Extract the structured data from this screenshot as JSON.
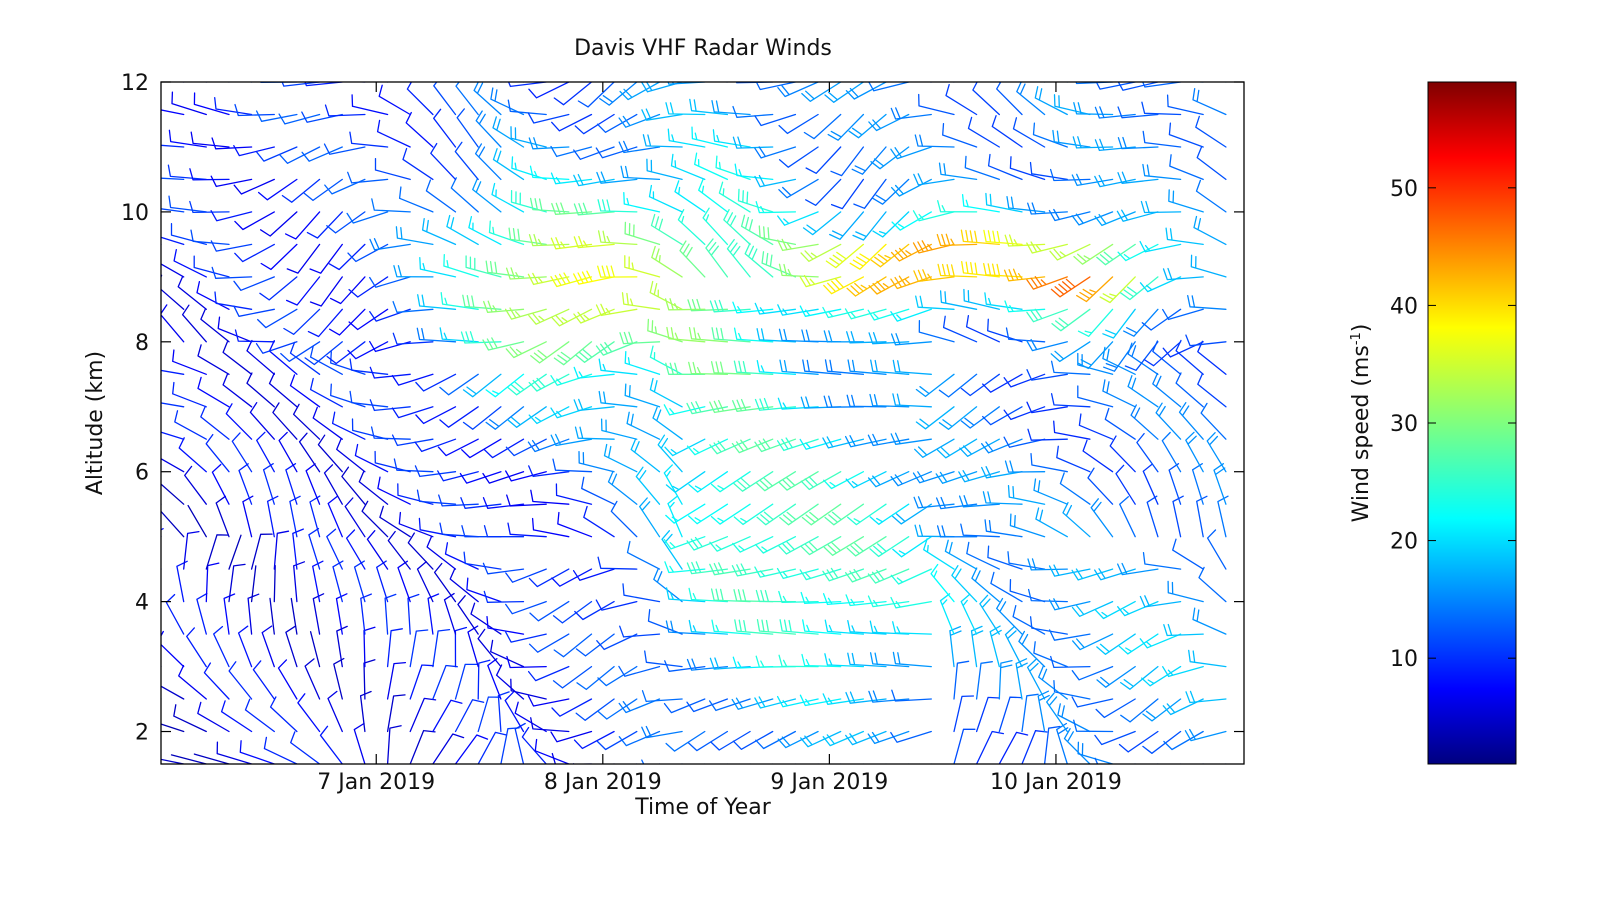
{
  "chart_data": {
    "type": "wind-barb",
    "title": "Davis VHF Radar Winds",
    "xlabel": "Time of Year",
    "ylabel": "Altitude (km)",
    "x_ticks": [
      "7 Jan 2019",
      "8 Jan 2019",
      "9 Jan 2019",
      "10 Jan 2019"
    ],
    "x_tick_days": [
      7,
      8,
      9,
      10
    ],
    "xlim": [
      6.05,
      10.83
    ],
    "y_ticks": [
      "2",
      "4",
      "6",
      "8",
      "10",
      "12"
    ],
    "y_tick_values": [
      2,
      4,
      6,
      8,
      10,
      12
    ],
    "ylim": [
      1.5,
      12
    ],
    "colorbar": {
      "label": "Wind speed (ms",
      "label_sup": "-1",
      "label_end": ")",
      "ticks": [
        "10",
        "20",
        "30",
        "40",
        "50"
      ],
      "tick_values": [
        10,
        20,
        30,
        40,
        50
      ],
      "range": [
        1,
        59
      ],
      "colormap": "jet"
    },
    "barb_grid": {
      "time_step_days": 0.1,
      "altitude_step_km": 0.5,
      "altitude_start_km": 1.5,
      "altitude_end_km": 12.0,
      "time_start_day": 6.05,
      "time_end_day": 10.8
    },
    "wind_pattern": "Strongest winds (~50-58 m/s, red/orange) near 9-9.5 km on 9-10 Jan 2019; jet of 30-40 m/s (green/yellow) near 8-10 km on 7.5-8.3 Jan; weak winds (<10 m/s, dark blue) in lower troposphere early in the period"
  }
}
